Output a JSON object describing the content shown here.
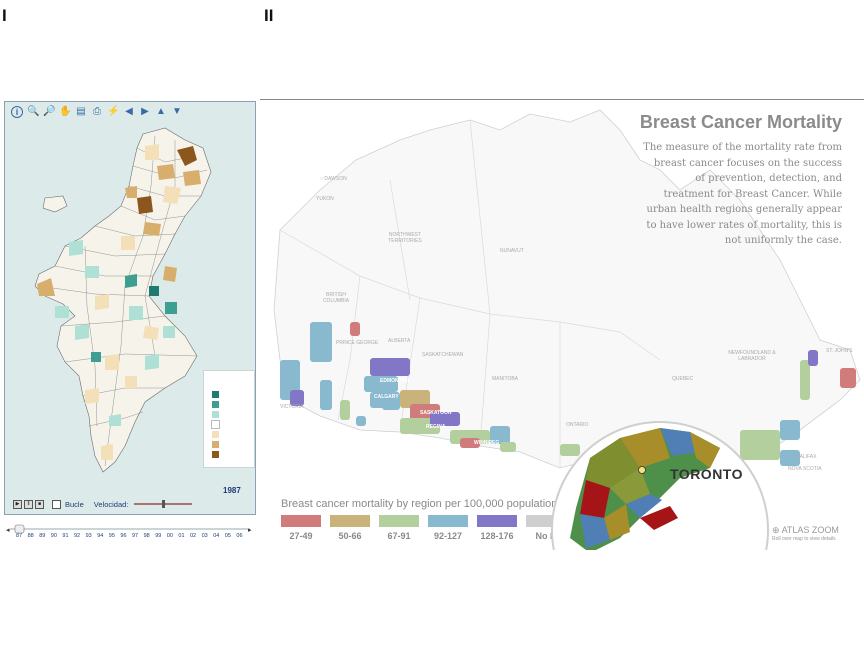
{
  "panel_labels": {
    "left": "I",
    "right": "II"
  },
  "left_map": {
    "toolbar_icons": [
      "info-icon",
      "zoom-in-icon",
      "zoom-out-icon",
      "pan-hand-icon",
      "table-icon",
      "print-icon",
      "lightning-icon",
      "arrow-left-icon",
      "arrow-right-icon",
      "arrow-up-icon",
      "arrow-down-icon"
    ],
    "legend_colors": [
      "#1f7a70",
      "#3e9e91",
      "#aee0d6",
      "#ffffff",
      "#f3dfb8",
      "#d8ae6c",
      "#8c561c"
    ],
    "year": "1987",
    "loop_label": "Bucle",
    "speed_label": "Velocidad:",
    "timeline_ticks": [
      "87",
      "88",
      "89",
      "90",
      "91",
      "92",
      "93",
      "94",
      "95",
      "96",
      "97",
      "98",
      "99",
      "00",
      "01",
      "02",
      "03",
      "04",
      "05",
      "06"
    ],
    "selected_year_index": 0
  },
  "right_map": {
    "title": "Breast Cancer Mortality",
    "description": "The measure of the mortality rate from breast cancer focuses on the success of prevention, detection, and treatment for Breast Cancer. While urban health regions generally appear to have lower rates of mortality, this is not uniformly the case.",
    "legend_title": "Breast cancer mortality by region per 100,000 population",
    "legend": [
      {
        "label": "27-49",
        "color": "#d07c7c"
      },
      {
        "label": "50-66",
        "color": "#c9b37a"
      },
      {
        "label": "67-91",
        "color": "#b2cf9d"
      },
      {
        "label": "92-127",
        "color": "#88b9cf"
      },
      {
        "label": "128-176",
        "color": "#8277c7"
      },
      {
        "label": "No D",
        "color": "#cfcfcf"
      }
    ],
    "inset_city": "TORONTO",
    "atlas_zoom": "ATLAS ZOOM",
    "atlas_zoom_sub": "Roll over map to view details",
    "places": [
      "DAWSON",
      "YUKON",
      "NORTHWEST TERRITORIES",
      "NUNAVUT",
      "BRITISH COLUMBIA",
      "PRINCE GEORGE",
      "ALBERTA",
      "SASKATCHEWAN",
      "MANITOBA",
      "ONTARIO",
      "QUEBEC",
      "NEWFOUNDLAND & LABRADOR",
      "ST. JOHN'S",
      "NOVA SCOTIA",
      "HALIFAX",
      "VICTORIA"
    ],
    "city_labels_on_map": [
      "EDMONTON",
      "CALGARY",
      "SASKATOON",
      "REGINA",
      "WINNIPEG"
    ]
  }
}
